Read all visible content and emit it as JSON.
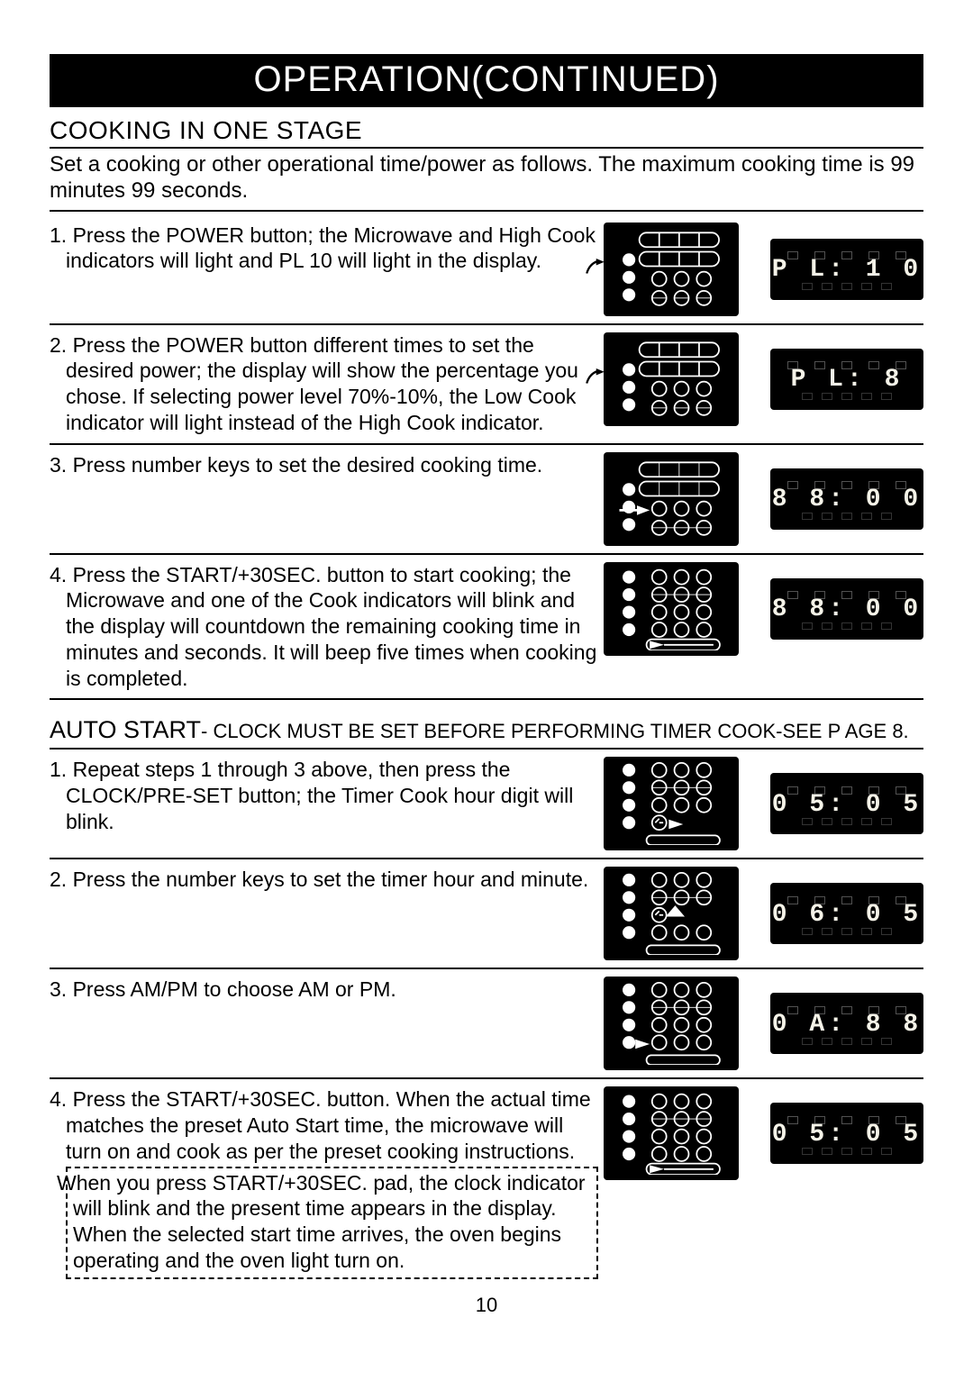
{
  "title": "OPERATION(CONTINUED)",
  "subheading": "COOKING IN ONE STAGE",
  "intro": "Set a cooking or other operational time/power as follows. The maximum cooking time is 99 minutes 99 seconds.",
  "page_number": "10",
  "steps_main": [
    {
      "num": "1.",
      "text": "Press the POWER button; the Microwave and High Cook indicators will light and  PL 10  will light in the display.",
      "panel_variant": "top_btns_arrow_power",
      "display_text": "P L: 1 0"
    },
    {
      "num": "2.",
      "text": "Press the POWER button different times to set the desired power; the display will show the percentage you chose. If selecting power level 70%-10%, the Low Cook indicator will light instead of the High Cook indicator.",
      "panel_variant": "top_btns_arrow_power",
      "display_text": "P L:  8"
    },
    {
      "num": "3.",
      "text": "Press number keys to set the desired cooking time.",
      "panel_variant": "top_btns_arrow_number",
      "display_text": "8 8: 0 0"
    },
    {
      "num": "4.",
      "text": "Press the START/+30SEC. button to start cooking; the Microwave and one of the Cook indicators will blink and the display will countdown the remaining cooking time in minutes and seconds. It will beep five times when cooking is completed.",
      "panel_variant": "bottom_start",
      "display_text": "8 8: 0 0"
    }
  ],
  "auto_start_heading_big": "AUTO START",
  "auto_start_heading_rest": "- CLOCK MUST BE SET BEFORE PERFORMING TIMER COOK-SEE P AGE 8.",
  "steps_auto": [
    {
      "num": "1.",
      "text": "Repeat steps 1 through 3 above, then press the CLOCK/PRE-SET button; the Timer Cook hour digit will blink.",
      "panel_variant": "mid_clock_arrow_right",
      "display_text": "0 5: 0 5"
    },
    {
      "num": "2.",
      "text": "Press the number keys to set the timer hour and minute.",
      "panel_variant": "mid_number_arrow_up",
      "display_text": "0 6: 0 5"
    },
    {
      "num": "3.",
      "text": "Press AM/PM to choose AM or PM.",
      "panel_variant": "mid_ampm",
      "display_text": "0 A: 8 8"
    },
    {
      "num": "4.",
      "text": "Press the START/+30SEC. button. When the actual time matches the preset Auto Start time, the microwave will turn on and cook as per the preset cooking instructions.",
      "panel_variant": "bottom_start",
      "display_text": "0 5: 0 5",
      "note": "When you press START/+30SEC. pad, the clock indicator will blink and the present time appears in the display.\nWhen the selected start time arrives, the oven begins operating and the oven light turn on."
    }
  ],
  "colors": {
    "black": "#000000",
    "white": "#ffffff",
    "display_text": "#f5f3e8"
  }
}
